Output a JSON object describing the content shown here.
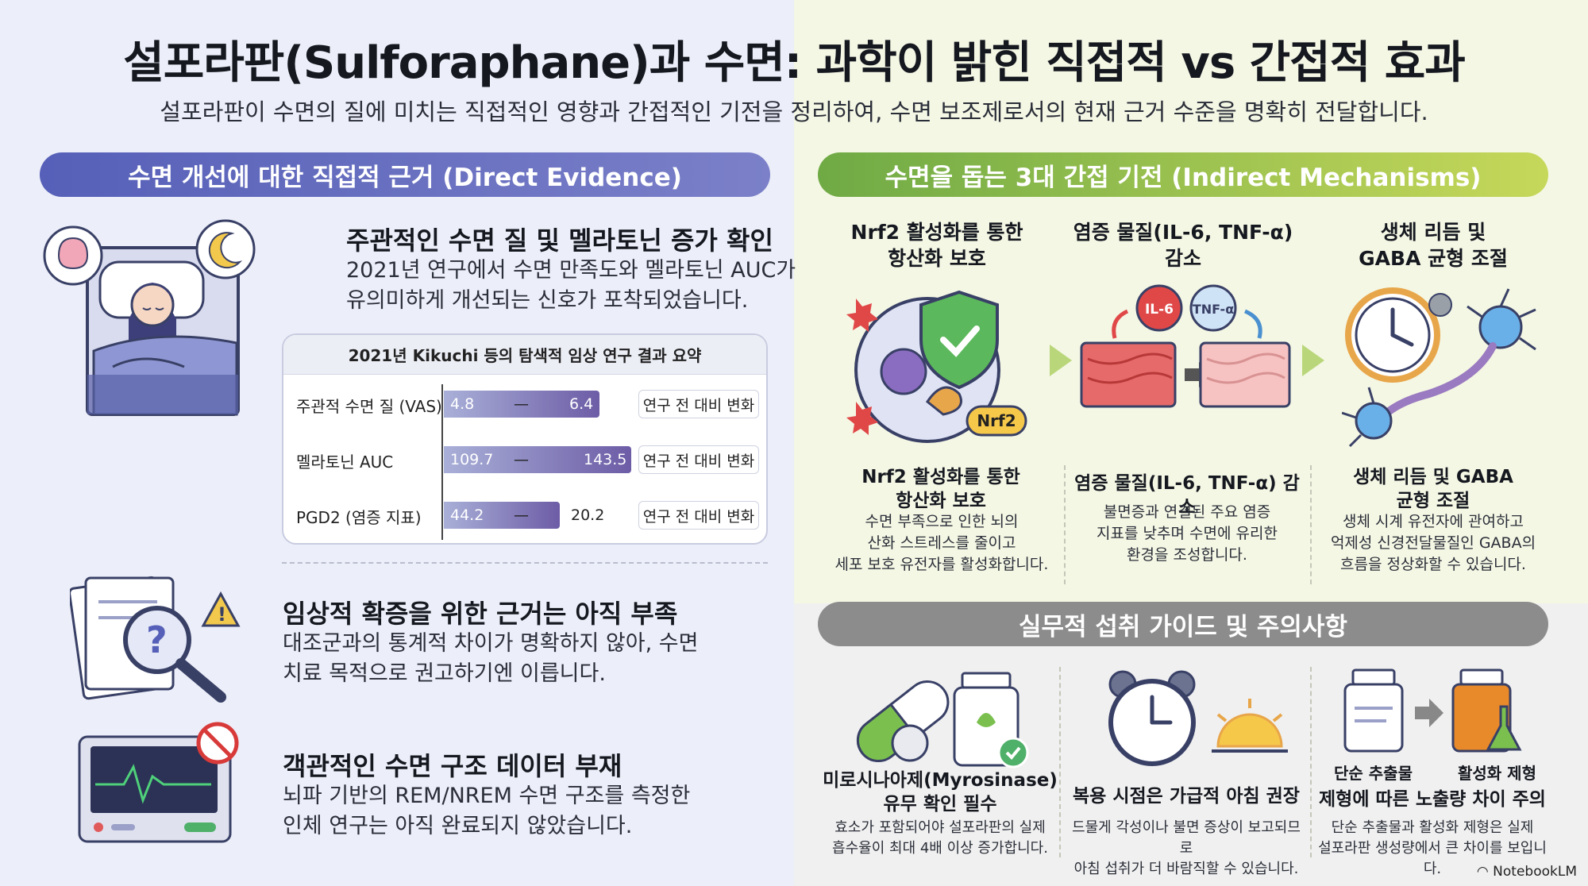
{
  "header": {
    "title": "설포라판(Sulforaphane)과 수면: 과학이 밝힌 직접적 vs 간접적 효과",
    "subtitle": "설포라판이 수면의 질에 미치는 직접적인 영향과 간접적인 기전을 정리하여, 수면 보조제로서의 현재 근거 수준을 명확히 전달합니다."
  },
  "direct": {
    "header": "수면 개선에 대한 직접적 근거 (Direct Evidence)",
    "finding1": {
      "title": "주관적인 수면 질 및 멜라토닌 증가 확인",
      "desc_line1": "2021년 연구에서 수면 만족도와 멜라토닌 AUC가",
      "desc_line2": "유의미하게 개선되는 신호가 포착되었습니다."
    },
    "table": {
      "title": "2021년 Kikuchi 등의 탐색적 임상 연구 결과 요약",
      "change_label": "연구 전 대비 변화",
      "rows": [
        {
          "label": "주관적 수면 질 (VAS)",
          "before": "4.8",
          "after": "6.4",
          "dash": "—"
        },
        {
          "label": "멜라토닌 AUC",
          "before": "109.7",
          "after": "143.5",
          "dash": "—"
        },
        {
          "label": "PGD2 (염증 지표)",
          "before": "44.2",
          "after": "20.2",
          "dash": "—"
        }
      ]
    },
    "finding2": {
      "title": "임상적 확증을 위한 근거는 아직 부족",
      "desc_line1": "대조군과의 통계적 차이가 명확하지 않아, 수면",
      "desc_line2": "치료 목적으로 권고하기엔 이릅니다."
    },
    "finding3": {
      "title": "객관적인 수면 구조 데이터 부재",
      "desc_line1": "뇌파 기반의 REM/NREM 수면 구조를 측정한",
      "desc_line2": "인체 연구는 아직 완료되지 않았습니다."
    }
  },
  "indirect": {
    "header": "수면을 돕는 3대 간접 기전 (Indirect Mechanisms)",
    "mechanisms": [
      {
        "top_line1": "Nrf2 활성화를 통한",
        "top_line2": "항산화 보호",
        "sub_line1": "Nrf2 활성화를 통한",
        "sub_line2": "항산화 보호",
        "desc_line1": "수면 부족으로 인한 뇌의",
        "desc_line2": "산화 스트레스를 줄이고",
        "desc_line3": "세포 보호 유전자를 활성화합니다.",
        "badge": "Nrf2"
      },
      {
        "top_line1": "염증 물질(IL-6, TNF-α) 감소",
        "top_line2": "",
        "sub_line1": "염증 물질(IL-6, TNF-α) 감소",
        "sub_line2": "",
        "desc_line1": "불면증과 연결된 주요 염증",
        "desc_line2": "지표를 낮추며 수면에 유리한",
        "desc_line3": "환경을 조성합니다.",
        "badge_a": "IL-6",
        "badge_b": "TNF-α"
      },
      {
        "top_line1": "생체 리듬 및",
        "top_line2": "GABA 균형 조절",
        "sub_line1": "생체 리듬 및 GABA",
        "sub_line2": "균형 조절",
        "desc_line1": "생체 시계 유전자에 관여하고",
        "desc_line2": "억제성 신경전달물질인 GABA의",
        "desc_line3": "흐름을 정상화할 수 있습니다."
      }
    ]
  },
  "guide": {
    "header": "실무적 섭취 가이드 및 주의사항",
    "items": [
      {
        "title_line1": "미로시나아제(Myrosinase)",
        "title_line2": "유무 확인 필수",
        "desc_line1": "효소가 포함되어야 설포라판의 실제",
        "desc_line2": "흡수율이 최대 4배 이상 증가합니다."
      },
      {
        "title_line1": "복용 시점은 가급적 아침 권장",
        "title_line2": "",
        "desc_line1": "드물게 각성이나 불면 증상이 보고되므로",
        "desc_line2": "아침 섭취가 더 바람직할 수 있습니다."
      },
      {
        "label_a": "단순 추출물",
        "label_b": "활성화 제형",
        "title_line1": "제형에 따른 노출량 차이 주의",
        "title_line2": "",
        "desc_line1": "단순 추출물과 활성화 제형은 실제",
        "desc_line2": "설포라판 생성량에서 큰 차이를 보입니다."
      }
    ]
  },
  "brand": "NotebookLM"
}
